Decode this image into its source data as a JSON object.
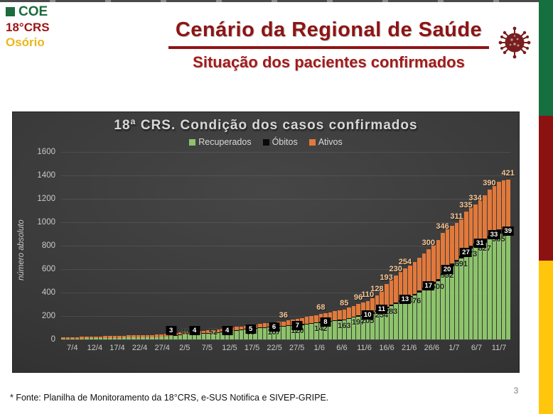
{
  "slide": {
    "logo": {
      "coe": "COE",
      "crs": "18°CRS",
      "city": "Osório"
    },
    "title": "Cenário da Regional de Saúde",
    "subtitle": "Situação dos pacientes confirmados",
    "footer": "* Fonte: Planilha de Monitoramento da 18°CRS, e-SUS Notifica e SIVEP-GRIPE.",
    "page_number": "3",
    "colors": {
      "title_red": "#8E1414",
      "logo_green": "#1B6B3C",
      "logo_yellow": "#EDB61A",
      "flag_green": "#156F3F",
      "flag_red": "#8C1212",
      "flag_yellow": "#FFC60B"
    }
  },
  "chart_data": {
    "type": "bar",
    "stacked": true,
    "title": "18ª CRS. Condição dos casos confirmados",
    "ylabel": "número absoluto",
    "ylim": [
      0,
      1600
    ],
    "ytick_step": 200,
    "grid": true,
    "legend_position": "top",
    "background": "dark",
    "x_tick_labels": [
      "7/4",
      "12/4",
      "17/4",
      "22/4",
      "27/4",
      "2/5",
      "7/5",
      "12/5",
      "17/5",
      "22/5",
      "27/5",
      "1/6",
      "6/6",
      "11/6",
      "16/6",
      "21/6",
      "26/6",
      "1/7",
      "6/7",
      "11/7"
    ],
    "x_note": "daily bars from 7/4 to 11/7 (96 days), tick every 5 days",
    "legend": [
      {
        "name": "Recuperados",
        "color": "#8DC46B"
      },
      {
        "name": "Óbitos",
        "color": "#0a0a0a"
      },
      {
        "name": "Ativos",
        "color": "#E2793B"
      }
    ],
    "series": [
      {
        "name": "Recuperados",
        "values": [
          6,
          7,
          8,
          8,
          9,
          10,
          11,
          12,
          12,
          13,
          14,
          14,
          15,
          16,
          16,
          17,
          18,
          18,
          19,
          19,
          20,
          23,
          27,
          30,
          33,
          37,
          40,
          42,
          44,
          46,
          48,
          50,
          52,
          57,
          61,
          66,
          70,
          75,
          79,
          84,
          88,
          92,
          96,
          99,
          103,
          107,
          110,
          112,
          115,
          117,
          120,
          124,
          129,
          133,
          138,
          142,
          146,
          150,
          155,
          159,
          163,
          174,
          186,
          197,
          201,
          205,
          221,
          238,
          254,
          269,
          283,
          302,
          320,
          339,
          357,
          376,
          401,
          426,
          450,
          475,
          500,
          546,
          592,
          625,
          658,
          691,
          732,
          773,
          791,
          809,
          827,
          853,
          879,
          905,
          905,
          905
        ]
      },
      {
        "name": "Óbitos",
        "values": [
          0,
          0,
          0,
          0,
          0,
          0,
          0,
          0,
          0,
          0,
          0,
          0,
          0,
          0,
          0,
          0,
          0,
          0,
          0,
          0,
          0,
          0,
          0,
          3,
          3,
          3,
          3,
          3,
          4,
          4,
          4,
          4,
          4,
          4,
          4,
          4,
          4,
          4,
          4,
          5,
          5,
          5,
          5,
          5,
          6,
          6,
          6,
          6,
          6,
          7,
          7,
          7,
          7,
          7,
          7,
          8,
          8,
          8,
          8,
          8,
          8,
          8,
          8,
          8,
          10,
          10,
          10,
          11,
          11,
          11,
          12,
          12,
          13,
          13,
          13,
          14,
          15,
          16,
          17,
          17,
          18,
          19,
          20,
          21,
          23,
          25,
          27,
          28,
          29,
          31,
          32,
          33,
          33,
          35,
          37,
          39
        ]
      },
      {
        "name": "Ativos",
        "values": [
          12,
          12,
          13,
          13,
          14,
          14,
          14,
          15,
          15,
          16,
          16,
          16,
          17,
          17,
          18,
          18,
          18,
          19,
          19,
          20,
          20,
          20,
          21,
          21,
          21,
          22,
          22,
          22,
          23,
          23,
          23,
          24,
          25,
          25,
          26,
          27,
          27,
          28,
          29,
          29,
          30,
          31,
          32,
          33,
          33,
          34,
          35,
          36,
          40,
          44,
          48,
          52,
          56,
          60,
          64,
          68,
          71,
          75,
          78,
          82,
          85,
          89,
          92,
          96,
          103,
          110,
          119,
          128,
          161,
          193,
          212,
          230,
          242,
          254,
          263,
          272,
          281,
          291,
          300,
          315,
          331,
          346,
          334,
          323,
          311,
          323,
          335,
          334,
          334,
          353,
          371,
          390,
          398,
          406,
          413,
          421
        ]
      }
    ],
    "data_labels": {
      "recuperados": [
        [
          26,
          40
        ],
        [
          32,
          52
        ],
        [
          40,
          88
        ],
        [
          45,
          107
        ],
        [
          50,
          120
        ],
        [
          55,
          142
        ],
        [
          60,
          163
        ],
        [
          63,
          197
        ],
        [
          65,
          205
        ],
        [
          68,
          254
        ],
        [
          70,
          283
        ],
        [
          75,
          376
        ],
        [
          80,
          500
        ],
        [
          82,
          592
        ],
        [
          85,
          691
        ],
        [
          87,
          773
        ],
        [
          90,
          827
        ],
        [
          93,
          905
        ]
      ],
      "obitos": [
        [
          23,
          3
        ],
        [
          28,
          4
        ],
        [
          35,
          4
        ],
        [
          40,
          5
        ],
        [
          45,
          6
        ],
        [
          50,
          7
        ],
        [
          56,
          8
        ],
        [
          65,
          10
        ],
        [
          68,
          11
        ],
        [
          73,
          13
        ],
        [
          78,
          17
        ],
        [
          82,
          20
        ],
        [
          86,
          27
        ],
        [
          89,
          31
        ],
        [
          92,
          33
        ],
        [
          95,
          39
        ]
      ],
      "ativos": [
        [
          47,
          36
        ],
        [
          55,
          68
        ],
        [
          60,
          85
        ],
        [
          63,
          96
        ],
        [
          65,
          110
        ],
        [
          67,
          128
        ],
        [
          69,
          193
        ],
        [
          71,
          230
        ],
        [
          73,
          254
        ],
        [
          78,
          300
        ],
        [
          81,
          346
        ],
        [
          84,
          311
        ],
        [
          86,
          335
        ],
        [
          88,
          334
        ],
        [
          91,
          390
        ],
        [
          95,
          421
        ]
      ]
    }
  }
}
